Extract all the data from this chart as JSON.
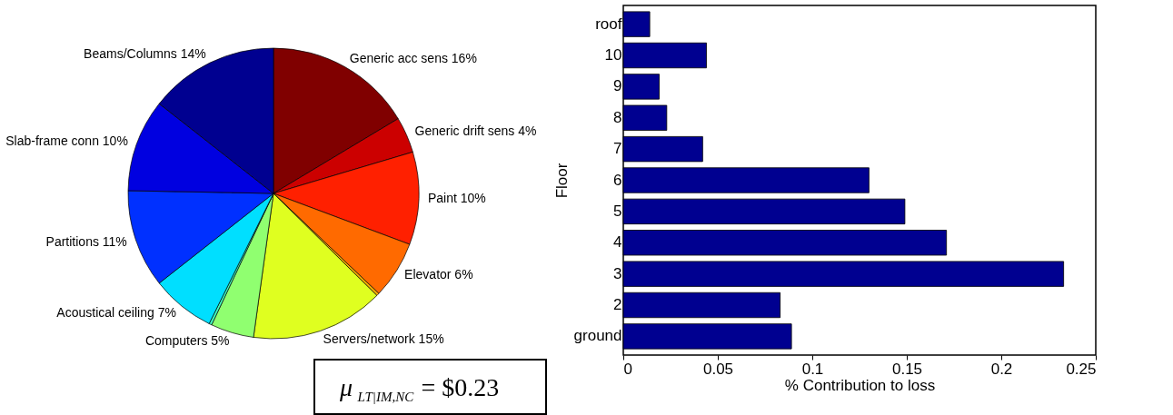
{
  "chart_data": [
    {
      "type": "pie",
      "categories": [
        "Generic acc sens",
        "Generic drift sens",
        "Paint",
        "Elevator",
        null,
        "Servers/network",
        "Computers",
        null,
        "Acoustical ceiling",
        "Partitions",
        "Slab-frame conn",
        "Beams/Columns"
      ],
      "values": [
        16.4,
        4,
        10.3,
        6.4,
        0.3,
        14.8,
        4.8,
        0.3,
        7.1,
        10.9,
        10.3,
        14.4
      ],
      "value_labels": [
        "16%",
        "4%",
        "10%",
        "6%",
        null,
        "15%",
        "5%",
        null,
        "7%",
        "11%",
        "10%",
        "14%"
      ],
      "colors": [
        "#800000",
        "#cc0000",
        "#ff2000",
        "#ff6a00",
        "#ffb000",
        "#dfff20",
        "#90ff70",
        "#40ffc0",
        "#00dfff",
        "#0030ff",
        "#0000e0",
        "#000090"
      ],
      "annotations": [
        "μ$_{LT|IM,NC}$ = $0.23"
      ]
    },
    {
      "type": "bar",
      "orientation": "horizontal",
      "categories": [
        "roof",
        "10",
        "9",
        "8",
        "7",
        "6",
        "5",
        "4",
        "3",
        "2",
        "ground"
      ],
      "values": [
        0.014,
        0.044,
        0.019,
        0.023,
        0.042,
        0.13,
        0.149,
        0.171,
        0.233,
        0.083,
        0.089
      ],
      "color": "#000090",
      "xlabel": "% Contribution to loss",
      "ylabel": "Floor",
      "xlim": [
        0,
        0.25
      ],
      "xticks": [
        0,
        0.05,
        0.1,
        0.15,
        0.2,
        0.25
      ],
      "grid": false
    }
  ]
}
